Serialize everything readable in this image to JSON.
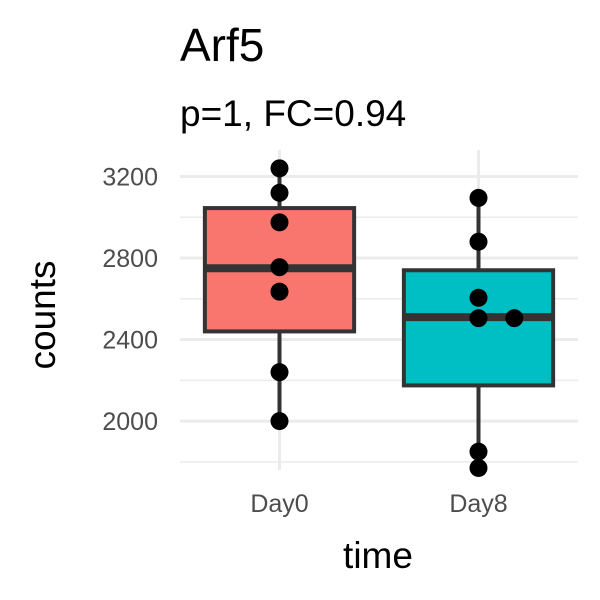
{
  "chart_data": {
    "type": "box",
    "title": "Arf5",
    "subtitle": "p=1, FC=0.94",
    "xlabel": "time",
    "ylabel": "counts",
    "categories": [
      "Day0",
      "Day8"
    ],
    "yticks": [
      2000,
      2400,
      2800,
      3200
    ],
    "ylim": [
      1760,
      3330
    ],
    "grid": true,
    "legend": "none",
    "boxes": [
      {
        "category": "Day0",
        "color": "#F8766D",
        "whisker_low": 2000,
        "q1": 2440,
        "median": 2750,
        "q3": 3045,
        "whisker_high": 3240
      },
      {
        "category": "Day8",
        "color": "#00BFC4",
        "whisker_low": 1770,
        "q1": 2175,
        "median": 2510,
        "q3": 2740,
        "whisker_high": 3095
      }
    ],
    "points": [
      {
        "category": "Day0",
        "y": 3240,
        "offset": 0
      },
      {
        "category": "Day0",
        "y": 3120,
        "offset": 0
      },
      {
        "category": "Day0",
        "y": 2975,
        "offset": 0
      },
      {
        "category": "Day0",
        "y": 2755,
        "offset": 0
      },
      {
        "category": "Day0",
        "y": 2635,
        "offset": 0
      },
      {
        "category": "Day0",
        "y": 2240,
        "offset": 0
      },
      {
        "category": "Day0",
        "y": 2000,
        "offset": 0
      },
      {
        "category": "Day8",
        "y": 3095,
        "offset": 0
      },
      {
        "category": "Day8",
        "y": 2880,
        "offset": 0
      },
      {
        "category": "Day8",
        "y": 2605,
        "offset": 0
      },
      {
        "category": "Day8",
        "y": 2505,
        "offset": 0
      },
      {
        "category": "Day8",
        "y": 2505,
        "offset": 0.18
      },
      {
        "category": "Day8",
        "y": 1850,
        "offset": 0
      },
      {
        "category": "Day8",
        "y": 1770,
        "offset": 0
      }
    ]
  }
}
